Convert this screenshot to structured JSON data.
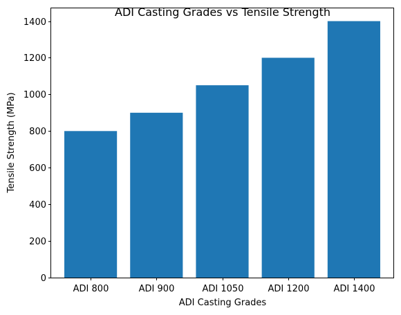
{
  "chart_data": {
    "type": "bar",
    "title": "ADI Casting Grades vs Tensile Strength",
    "xlabel": "ADI Casting Grades",
    "ylabel": "Tensile Strength (MPa)",
    "categories": [
      "ADI 800",
      "ADI 900",
      "ADI 1050",
      "ADI 1200",
      "ADI 1400"
    ],
    "values": [
      800,
      900,
      1050,
      1200,
      1400
    ],
    "ylim": [
      0,
      1470
    ],
    "yticks": [
      0,
      200,
      400,
      600,
      800,
      1000,
      1200,
      1400
    ],
    "bar_color": "#1f77b4",
    "grid": false,
    "legend": "none"
  }
}
